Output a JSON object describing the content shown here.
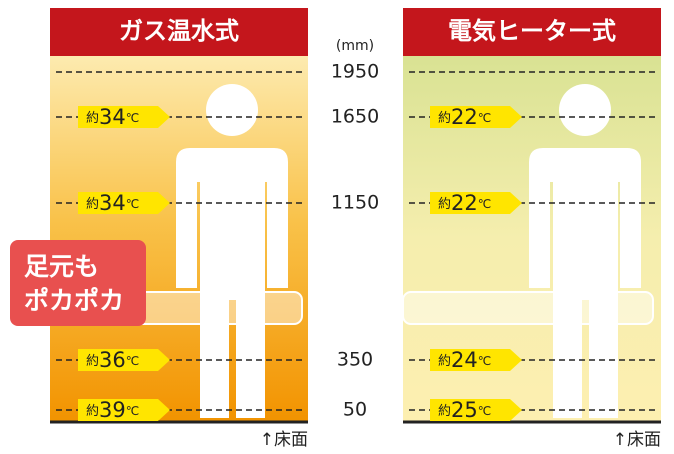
{
  "unit": "(mm)",
  "heights": [
    1950,
    1650,
    1150,
    350,
    50
  ],
  "panels": [
    {
      "title": "ガス温水式",
      "temps": [
        null,
        {
          "prefix": "約",
          "value": 34,
          "unit": "℃"
        },
        {
          "prefix": "約",
          "value": 34,
          "unit": "℃"
        },
        {
          "prefix": "約",
          "value": 36,
          "unit": "℃"
        },
        {
          "prefix": "約",
          "value": 39,
          "unit": "℃"
        }
      ],
      "floor": "↑床面"
    },
    {
      "title": "電気ヒーター式",
      "temps": [
        null,
        {
          "prefix": "約",
          "value": 22,
          "unit": "℃"
        },
        {
          "prefix": "約",
          "value": 22,
          "unit": "℃"
        },
        {
          "prefix": "約",
          "value": 24,
          "unit": "℃"
        },
        {
          "prefix": "約",
          "value": 25,
          "unit": "℃"
        }
      ],
      "floor": "↑床面"
    }
  ],
  "callout": [
    "足元も",
    "ポカポカ"
  ]
}
